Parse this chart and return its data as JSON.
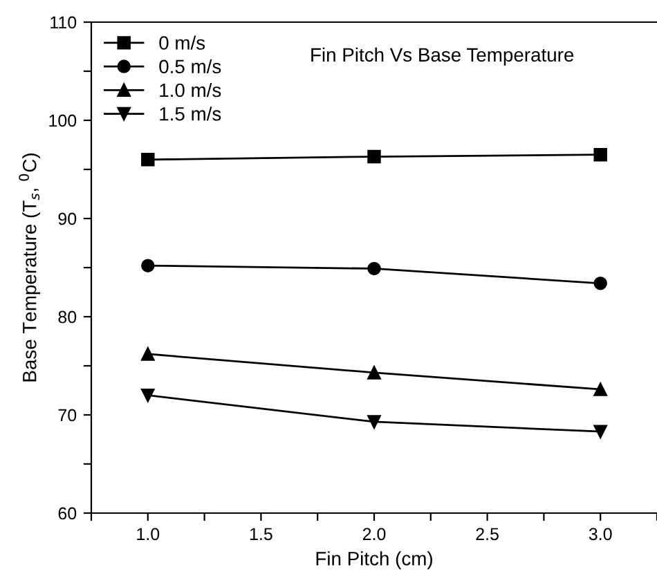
{
  "chart_data": {
    "type": "line",
    "title": "Fin Pitch Vs Base Temperature",
    "xlabel": "Fin Pitch (cm)",
    "ylabel": "Base Temperature (T$_{s}$, $^{0}$C)",
    "x": [
      1.0,
      2.0,
      3.0
    ],
    "series": [
      {
        "name": "0 m/s",
        "color": "#000000",
        "marker": "square",
        "values": [
          96.0,
          96.3,
          96.5
        ]
      },
      {
        "name": "0.5 m/s",
        "color": "#000000",
        "marker": "circle",
        "values": [
          85.2,
          84.9,
          83.4
        ]
      },
      {
        "name": "1.0 m/s",
        "color": "#000000",
        "marker": "triangle",
        "values": [
          76.2,
          74.3,
          72.6
        ]
      },
      {
        "name": "1.5 m/s",
        "color": "#000000",
        "marker": "triangle_down",
        "values": [
          72.0,
          69.3,
          68.3
        ]
      }
    ],
    "xlim": [
      0.75,
      3.25
    ],
    "ylim": [
      60,
      110
    ],
    "xticks": [
      {
        "value": 0.75,
        "label": null
      },
      {
        "value": 1,
        "label": "1.0"
      },
      {
        "value": 1.25,
        "label": null
      },
      1.5,
      {
        "value": 1.75,
        "label": null
      },
      {
        "value": 2,
        "label": "2.0"
      },
      {
        "value": 2.25,
        "label": null
      },
      2.5,
      {
        "value": 2.75,
        "label": null
      },
      {
        "value": 3,
        "label": "3.0"
      },
      {
        "value": 3.25,
        "label": null
      }
    ],
    "yticks": [
      60,
      {
        "value": 65,
        "label": null
      },
      70,
      {
        "value": 75,
        "label": null
      },
      80,
      {
        "value": 85,
        "label": null
      },
      90,
      {
        "value": 95,
        "label": null
      },
      100,
      {
        "value": 105,
        "label": null
      },
      110
    ],
    "grid": false,
    "legend": "top left",
    "line_style": "solid"
  }
}
